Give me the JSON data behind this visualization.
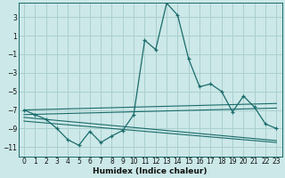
{
  "xlabel": "Humidex (Indice chaleur)",
  "background_color": "#cce8e8",
  "grid_color": "#aacfcf",
  "line_color": "#1a6b6b",
  "xlim": [
    -0.5,
    23.5
  ],
  "ylim": [
    -12,
    4.5
  ],
  "yticks": [
    3,
    1,
    -1,
    -3,
    -5,
    -7,
    -9,
    -11
  ],
  "xticks": [
    0,
    1,
    2,
    3,
    4,
    5,
    6,
    7,
    8,
    9,
    10,
    11,
    12,
    13,
    14,
    15,
    16,
    17,
    18,
    19,
    20,
    21,
    22,
    23
  ],
  "main_x": [
    0,
    1,
    2,
    3,
    4,
    5,
    6,
    7,
    8,
    9,
    10,
    11,
    12,
    13,
    14,
    15,
    16,
    17,
    18,
    19,
    20,
    21,
    22,
    23
  ],
  "main_y": [
    -7.0,
    -7.5,
    -8.0,
    -9.0,
    -10.2,
    -10.8,
    -9.3,
    -10.5,
    -9.8,
    -9.2,
    -7.5,
    0.5,
    -0.5,
    4.5,
    3.2,
    -1.5,
    -4.5,
    -4.2,
    -5.0,
    -7.2,
    -5.5,
    -6.7,
    -8.5,
    -9.0
  ],
  "trend1_x": [
    0,
    23
  ],
  "trend1_y": [
    -7.0,
    -6.3
  ],
  "trend2_x": [
    0,
    23
  ],
  "trend2_y": [
    -7.5,
    -6.8
  ],
  "trend3_x": [
    0,
    23
  ],
  "trend3_y": [
    -7.8,
    -10.3
  ],
  "trend4_x": [
    0,
    23
  ],
  "trend4_y": [
    -8.2,
    -10.5
  ]
}
